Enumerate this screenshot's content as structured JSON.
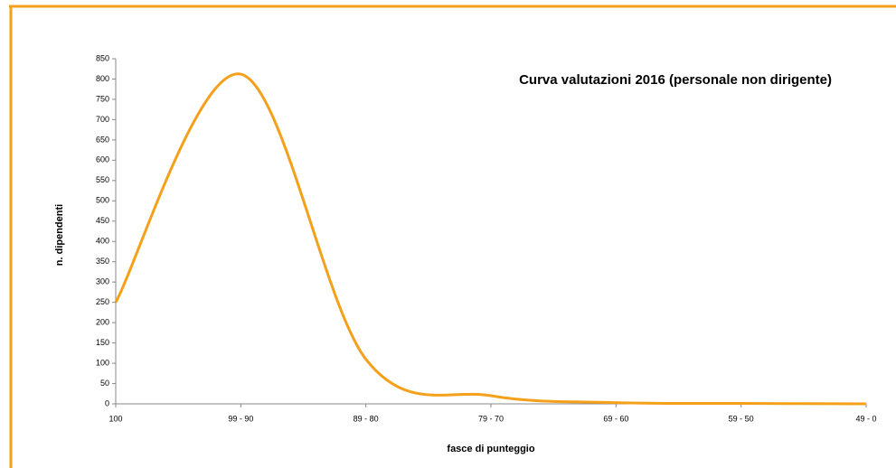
{
  "chart_data": {
    "type": "line",
    "title": "Curva valutazioni 2016 (personale non dirigente)",
    "x_label": "fasce di punteggio",
    "y_label": "n. dipendenti",
    "categories": [
      "100",
      "99 - 90",
      "89 - 80",
      "79 - 70",
      "69 - 60",
      "59 - 50",
      "49 - 0"
    ],
    "series": [
      {
        "name": "Curva valutazioni 2016",
        "color": "#f5a01a",
        "values": [
          250,
          812,
          110,
          20,
          3,
          1,
          0
        ]
      }
    ],
    "ylim": [
      0,
      850
    ],
    "yticks": [
      0,
      50,
      100,
      150,
      200,
      250,
      300,
      350,
      400,
      450,
      500,
      550,
      600,
      650,
      700,
      750,
      800,
      850
    ],
    "grid": false
  }
}
